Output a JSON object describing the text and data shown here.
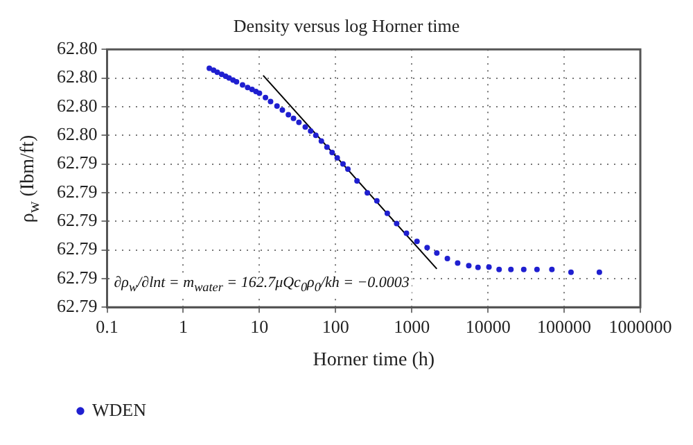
{
  "chart_data": {
    "type": "scatter",
    "title": "Density versus log Horner time",
    "xlabel": "Horner time (h)",
    "ylabel": "ρ$_{w}$ (Ibm/ft)",
    "log": "x",
    "grid": true,
    "legend": "bottom left",
    "marker": "circle",
    "xlim": [
      0.1,
      1000000
    ],
    "xticks": [
      0.1,
      1,
      10,
      100,
      1000,
      10000,
      100000,
      1000000
    ],
    "ylim": [
      62.79,
      62.799
    ],
    "yticks": [
      {
        "value": 62.79,
        "label": "62.79"
      },
      {
        "value": 62.791,
        "label": "62.79"
      },
      {
        "value": 62.792,
        "label": "62.79"
      },
      {
        "value": 62.793,
        "label": "62.79"
      },
      {
        "value": 62.794,
        "label": "62.79"
      },
      {
        "value": 62.795,
        "label": "62.79"
      },
      {
        "value": 62.796,
        "label": "62.80"
      },
      {
        "value": 62.797,
        "label": "62.80"
      },
      {
        "value": 62.798,
        "label": "62.80"
      },
      {
        "value": 62.799,
        "label": "62.80"
      }
    ],
    "annotations": [
      "∂ρ$_{w}$/∂lnt = m$_{water}$ = 162.7μQc$_{0}$ρ$_{0}$/kh = −0.0003"
    ],
    "series": [
      {
        "name": "WDEN",
        "type": "scatter",
        "color": "#1f1fd0",
        "x": [
          2.2,
          2.5,
          2.8,
          3.2,
          3.6,
          4,
          4.5,
          5,
          6,
          7,
          8,
          9,
          10,
          12,
          14,
          17,
          20,
          24,
          28,
          33,
          40,
          47,
          55,
          65,
          77,
          90,
          105,
          125,
          145,
          191,
          261,
          348,
          477,
          633,
          851,
          1170,
          1590,
          2130,
          2930,
          4000,
          5600,
          7400,
          10300,
          14000,
          20000,
          29500,
          44000,
          69000,
          123000,
          290000
        ],
        "values": [
          62.79834,
          62.79827,
          62.7982,
          62.79813,
          62.79806,
          62.798,
          62.79793,
          62.79787,
          62.79776,
          62.79767,
          62.7976,
          62.79753,
          62.79747,
          62.79732,
          62.79718,
          62.79702,
          62.79688,
          62.79672,
          62.79659,
          62.79645,
          62.79629,
          62.79615,
          62.796,
          62.7958,
          62.79559,
          62.7954,
          62.79521,
          62.795,
          62.79482,
          62.79441,
          62.79399,
          62.79371,
          62.79328,
          62.79292,
          62.79258,
          62.7923,
          62.79208,
          62.79189,
          62.7917,
          62.79154,
          62.79145,
          62.79139,
          62.7914,
          62.79132,
          62.79132,
          62.79132,
          62.79132,
          62.79132,
          62.79122,
          62.79122
        ]
      },
      {
        "type": "line",
        "color": "#000000",
        "marker": "none",
        "x": [
          11.2,
          2130
        ],
        "values": [
          62.79809,
          62.79134
        ]
      }
    ]
  }
}
